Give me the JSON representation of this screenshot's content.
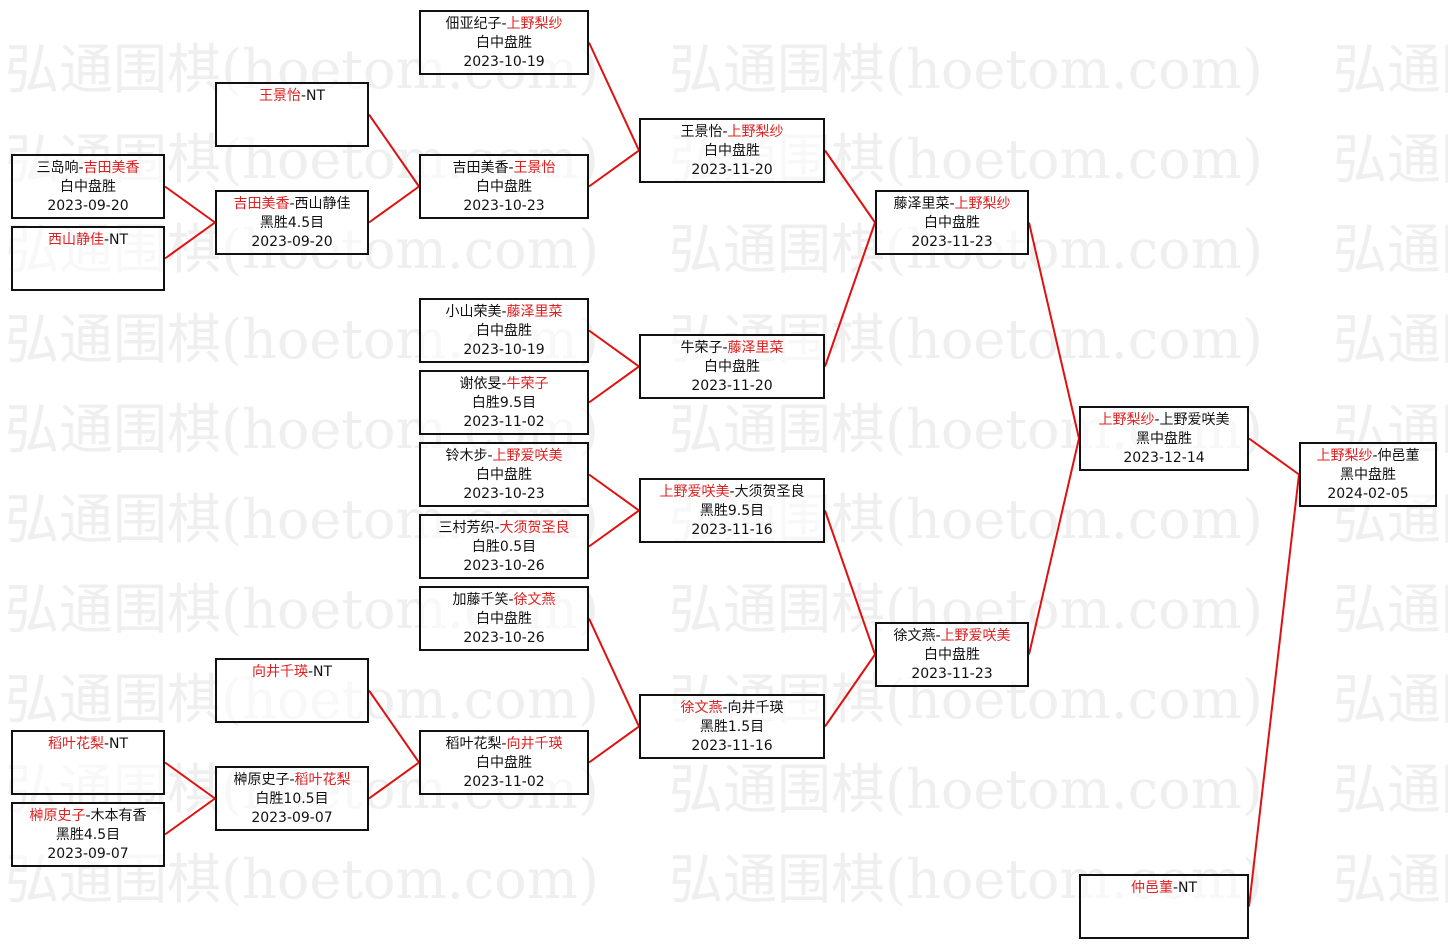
{
  "watermark": "弘通围棋(hoetom.com)",
  "colors": {
    "winner": "#e02020",
    "line": "#e01010",
    "border": "#111111"
  },
  "matches": [
    {
      "p1": "三岛响",
      "p2": "吉田美香",
      "winner": 2,
      "result": "白中盘胜",
      "date": "2023-09-20"
    },
    {
      "p1": "西山静佳",
      "p2": "NT",
      "winner": 1,
      "result": "",
      "date": ""
    },
    {
      "p1": "稻叶花梨",
      "p2": "NT",
      "winner": 1,
      "result": "",
      "date": ""
    },
    {
      "p1": "榊原史子",
      "p2": "木本有香",
      "winner": 1,
      "result": "黑胜4.5目",
      "date": "2023-09-07"
    },
    {
      "p1": "王景怡",
      "p2": "NT",
      "winner": 1,
      "result": "",
      "date": ""
    },
    {
      "p1": "吉田美香",
      "p2": "西山静佳",
      "winner": 1,
      "result": "黑胜4.5目",
      "date": "2023-09-20"
    },
    {
      "p1": "向井千瑛",
      "p2": "NT",
      "winner": 1,
      "result": "",
      "date": ""
    },
    {
      "p1": "榊原史子",
      "p2": "稻叶花梨",
      "winner": 2,
      "result": "白胜10.5目",
      "date": "2023-09-07"
    },
    {
      "p1": "佃亚纪子",
      "p2": "上野梨纱",
      "winner": 2,
      "result": "白中盘胜",
      "date": "2023-10-19"
    },
    {
      "p1": "吉田美香",
      "p2": "王景怡",
      "winner": 2,
      "result": "白中盘胜",
      "date": "2023-10-23"
    },
    {
      "p1": "小山荣美",
      "p2": "藤泽里菜",
      "winner": 2,
      "result": "白中盘胜",
      "date": "2023-10-19"
    },
    {
      "p1": "谢依旻",
      "p2": "牛荣子",
      "winner": 2,
      "result": "白胜9.5目",
      "date": "2023-11-02"
    },
    {
      "p1": "铃木步",
      "p2": "上野爱咲美",
      "winner": 2,
      "result": "白中盘胜",
      "date": "2023-10-23"
    },
    {
      "p1": "三村芳织",
      "p2": "大须贺圣良",
      "winner": 2,
      "result": "白胜0.5目",
      "date": "2023-10-26"
    },
    {
      "p1": "加藤千笑",
      "p2": "徐文燕",
      "winner": 2,
      "result": "白中盘胜",
      "date": "2023-10-26"
    },
    {
      "p1": "稻叶花梨",
      "p2": "向井千瑛",
      "winner": 2,
      "result": "白中盘胜",
      "date": "2023-11-02"
    },
    {
      "p1": "王景怡",
      "p2": "上野梨纱",
      "winner": 2,
      "result": "白中盘胜",
      "date": "2023-11-20"
    },
    {
      "p1": "牛荣子",
      "p2": "藤泽里菜",
      "winner": 2,
      "result": "白中盘胜",
      "date": "2023-11-20"
    },
    {
      "p1": "上野爱咲美",
      "p2": "大须贺圣良",
      "winner": 1,
      "result": "黑胜9.5目",
      "date": "2023-11-16"
    },
    {
      "p1": "徐文燕",
      "p2": "向井千瑛",
      "winner": 1,
      "result": "黑胜1.5目",
      "date": "2023-11-16"
    },
    {
      "p1": "藤泽里菜",
      "p2": "上野梨纱",
      "winner": 2,
      "result": "白中盘胜",
      "date": "2023-11-23"
    },
    {
      "p1": "徐文燕",
      "p2": "上野爱咲美",
      "winner": 2,
      "result": "白中盘胜",
      "date": "2023-11-23"
    },
    {
      "p1": "上野梨纱",
      "p2": "上野爱咲美",
      "winner": 1,
      "result": "黑中盘胜",
      "date": "2023-12-14"
    },
    {
      "p1": "仲邑菫",
      "p2": "NT",
      "winner": 1,
      "result": "",
      "date": ""
    },
    {
      "p1": "上野梨纱",
      "p2": "仲邑菫",
      "winner": 1,
      "result": "黑中盘胜",
      "date": "2024-02-05"
    }
  ]
}
